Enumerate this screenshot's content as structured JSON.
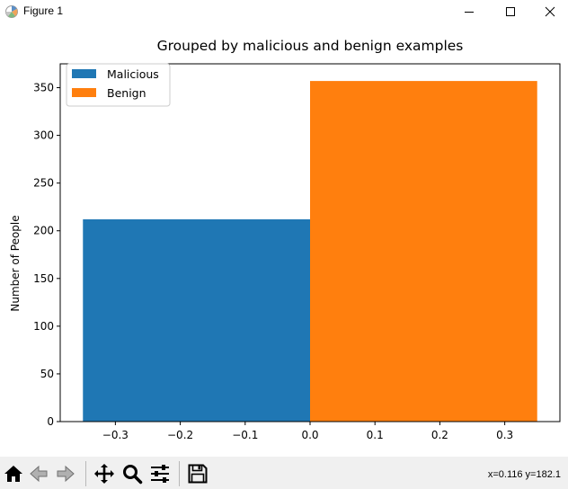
{
  "window": {
    "title": "Figure 1",
    "controls": [
      "minimize",
      "maximize",
      "close"
    ]
  },
  "chart_data": {
    "type": "bar",
    "title": "Grouped by malicious and benign examples",
    "xlabel": "",
    "ylabel": "Number of People",
    "xlim": [
      -0.385,
      0.385
    ],
    "ylim": [
      0,
      375
    ],
    "xticks": [
      -0.3,
      -0.2,
      -0.1,
      0.0,
      0.1,
      0.2,
      0.3
    ],
    "xtick_labels": [
      "−0.3",
      "−0.2",
      "−0.1",
      "0.0",
      "0.1",
      "0.2",
      "0.3"
    ],
    "yticks": [
      0,
      50,
      100,
      150,
      200,
      250,
      300,
      350
    ],
    "ytick_labels": [
      "0",
      "50",
      "100",
      "150",
      "200",
      "250",
      "300",
      "350"
    ],
    "grid": false,
    "legend_position": "upper-left",
    "bar_width": 0.35,
    "series": [
      {
        "name": "Malicious",
        "x": -0.175,
        "value": 212,
        "color": "#1f77b4"
      },
      {
        "name": "Benign",
        "x": 0.175,
        "value": 357,
        "color": "#ff7f0e"
      }
    ]
  },
  "toolbar": {
    "buttons": [
      {
        "name": "home-button",
        "icon": "home-icon"
      },
      {
        "name": "back-button",
        "icon": "back-arrow-icon"
      },
      {
        "name": "forward-button",
        "icon": "forward-arrow-icon"
      },
      {
        "name": "pan-button",
        "icon": "move-icon"
      },
      {
        "name": "zoom-button",
        "icon": "magnifier-icon"
      },
      {
        "name": "configure-subplots-button",
        "icon": "sliders-icon"
      },
      {
        "name": "save-button",
        "icon": "floppy-disk-icon"
      }
    ],
    "coordinates": "x=0.116 y=182.1"
  }
}
